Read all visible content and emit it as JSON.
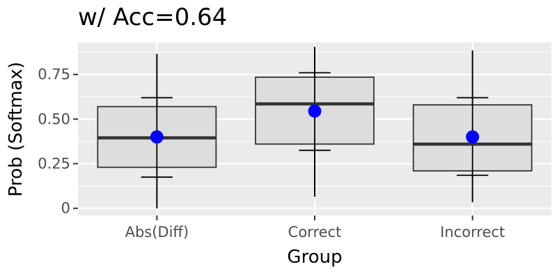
{
  "chart_data": {
    "type": "boxplot",
    "title": "w/ Acc=0.64",
    "xlabel": "Group",
    "ylabel": "Prob (Softmax)",
    "categories": [
      "Abs(Diff)",
      "Correct",
      "Incorrect"
    ],
    "ylim": [
      -0.04,
      0.93
    ],
    "yticks": [
      0,
      0.25,
      0.5,
      0.75
    ],
    "ytick_labels": [
      "0",
      "0.25",
      "0.50",
      "0.75"
    ],
    "boxes": [
      {
        "group": "Abs(Diff)",
        "min": 0.0,
        "q1": 0.23,
        "median": 0.395,
        "q3": 0.57,
        "max": 0.865,
        "mean": 0.4,
        "lower_bar": 0.175,
        "upper_bar": 0.62
      },
      {
        "group": "Correct",
        "min": 0.065,
        "q1": 0.36,
        "median": 0.585,
        "q3": 0.735,
        "max": 0.905,
        "mean": 0.545,
        "lower_bar": 0.325,
        "upper_bar": 0.76
      },
      {
        "group": "Incorrect",
        "min": 0.035,
        "q1": 0.21,
        "median": 0.36,
        "q3": 0.58,
        "max": 0.885,
        "mean": 0.4,
        "lower_bar": 0.185,
        "upper_bar": 0.62
      }
    ],
    "grid": true,
    "legend": "none",
    "colors": {
      "panel": "#ebebeb",
      "grid_major": "#ffffff",
      "box_fill": "#dddddd",
      "box_stroke": "#333333",
      "mean_point": "#0000ff",
      "error_bar": "#000000"
    }
  }
}
